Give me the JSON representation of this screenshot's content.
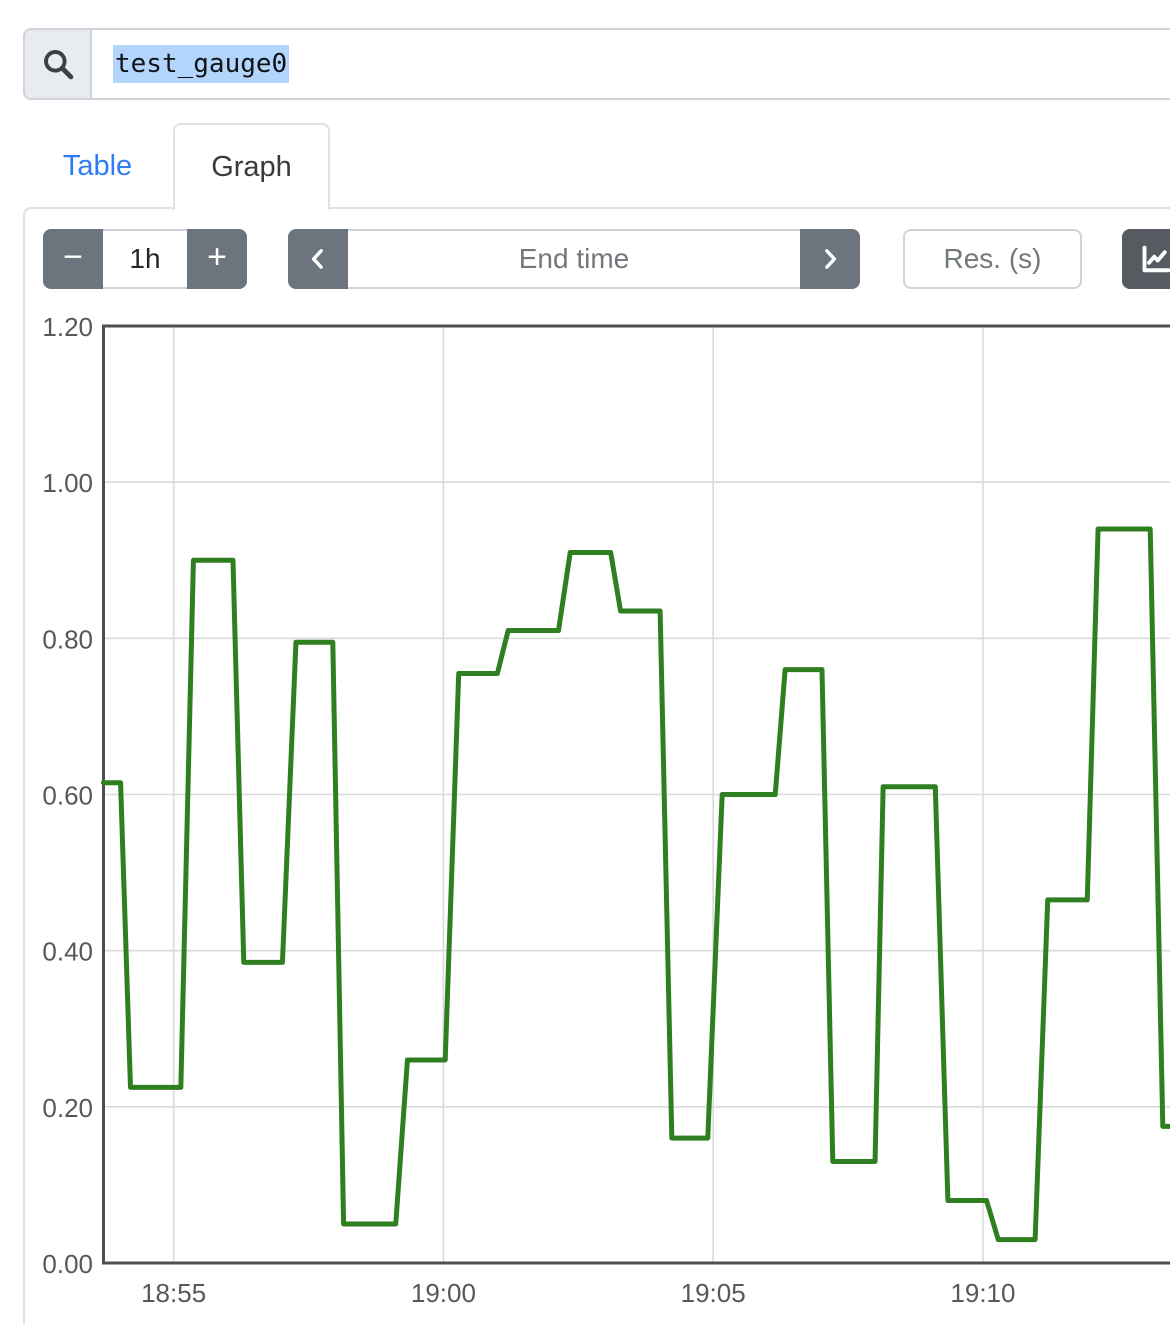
{
  "search": {
    "value": "test_gauge0",
    "icon": "search-icon"
  },
  "tabs": {
    "table_label": "Table",
    "graph_label": "Graph",
    "active": "Graph"
  },
  "toolbar": {
    "decrease_label": "−",
    "duration_value": "1h",
    "increase_label": "+",
    "prev_icon": "chevron-left-icon",
    "end_time_placeholder": "End time",
    "next_icon": "chevron-right-icon",
    "res_placeholder": "Res. (s)",
    "chart_toggle_icon": "line-chart-icon"
  },
  "colors": {
    "link_blue": "#2f7bf6",
    "button_gray": "#6c757d",
    "button_dark": "#555b61",
    "selection_blue": "#b3d5fc",
    "series_green": "#2f7e20",
    "panel_border": "#dee2e6",
    "input_border": "#ced4da",
    "grid_line": "#d9dadc",
    "axis_line": "#4d5052",
    "tick_label": "#55585c"
  },
  "chart_data": {
    "type": "line",
    "step": true,
    "series_name": "test_gauge0",
    "series_color": "#2f7e20",
    "grid": true,
    "x_window": {
      "start": "18:53:42",
      "end": "19:13:28"
    },
    "x_ticks": [
      "18:55",
      "19:00",
      "19:05",
      "19:10"
    ],
    "ylim": [
      0,
      1.2
    ],
    "y_ticks": [
      "0.00",
      "0.20",
      "0.40",
      "0.60",
      "0.80",
      "1.00",
      "1.20"
    ],
    "segments": [
      {
        "from": "18:53:42",
        "to": "18:54:01",
        "value": 0.615
      },
      {
        "from": "18:54:12",
        "to": "18:55:08",
        "value": 0.225
      },
      {
        "from": "18:55:22",
        "to": "18:56:06",
        "value": 0.9
      },
      {
        "from": "18:56:18",
        "to": "18:57:01",
        "value": 0.385
      },
      {
        "from": "18:57:16",
        "to": "18:57:57",
        "value": 0.795
      },
      {
        "from": "18:58:09",
        "to": "18:59:07",
        "value": 0.05
      },
      {
        "from": "18:59:20",
        "to": "19:00:02",
        "value": 0.26
      },
      {
        "from": "19:00:17",
        "to": "19:01:00",
        "value": 0.755
      },
      {
        "from": "19:01:12",
        "to": "19:02:08",
        "value": 0.81
      },
      {
        "from": "19:02:21",
        "to": "19:03:06",
        "value": 0.91
      },
      {
        "from": "19:03:17",
        "to": "19:04:01",
        "value": 0.835
      },
      {
        "from": "19:04:14",
        "to": "19:04:54",
        "value": 0.16
      },
      {
        "from": "19:05:10",
        "to": "19:06:09",
        "value": 0.6
      },
      {
        "from": "19:06:20",
        "to": "19:07:01",
        "value": 0.76
      },
      {
        "from": "19:07:13",
        "to": "19:08:00",
        "value": 0.13
      },
      {
        "from": "19:08:09",
        "to": "19:09:07",
        "value": 0.61
      },
      {
        "from": "19:09:21",
        "to": "19:10:04",
        "value": 0.08
      },
      {
        "from": "19:10:17",
        "to": "19:10:58",
        "value": 0.03
      },
      {
        "from": "19:11:12",
        "to": "19:11:56",
        "value": 0.465
      },
      {
        "from": "19:12:08",
        "to": "19:13:06",
        "value": 0.94
      },
      {
        "from": "19:13:20",
        "to": "19:13:28",
        "value": 0.175
      }
    ]
  }
}
